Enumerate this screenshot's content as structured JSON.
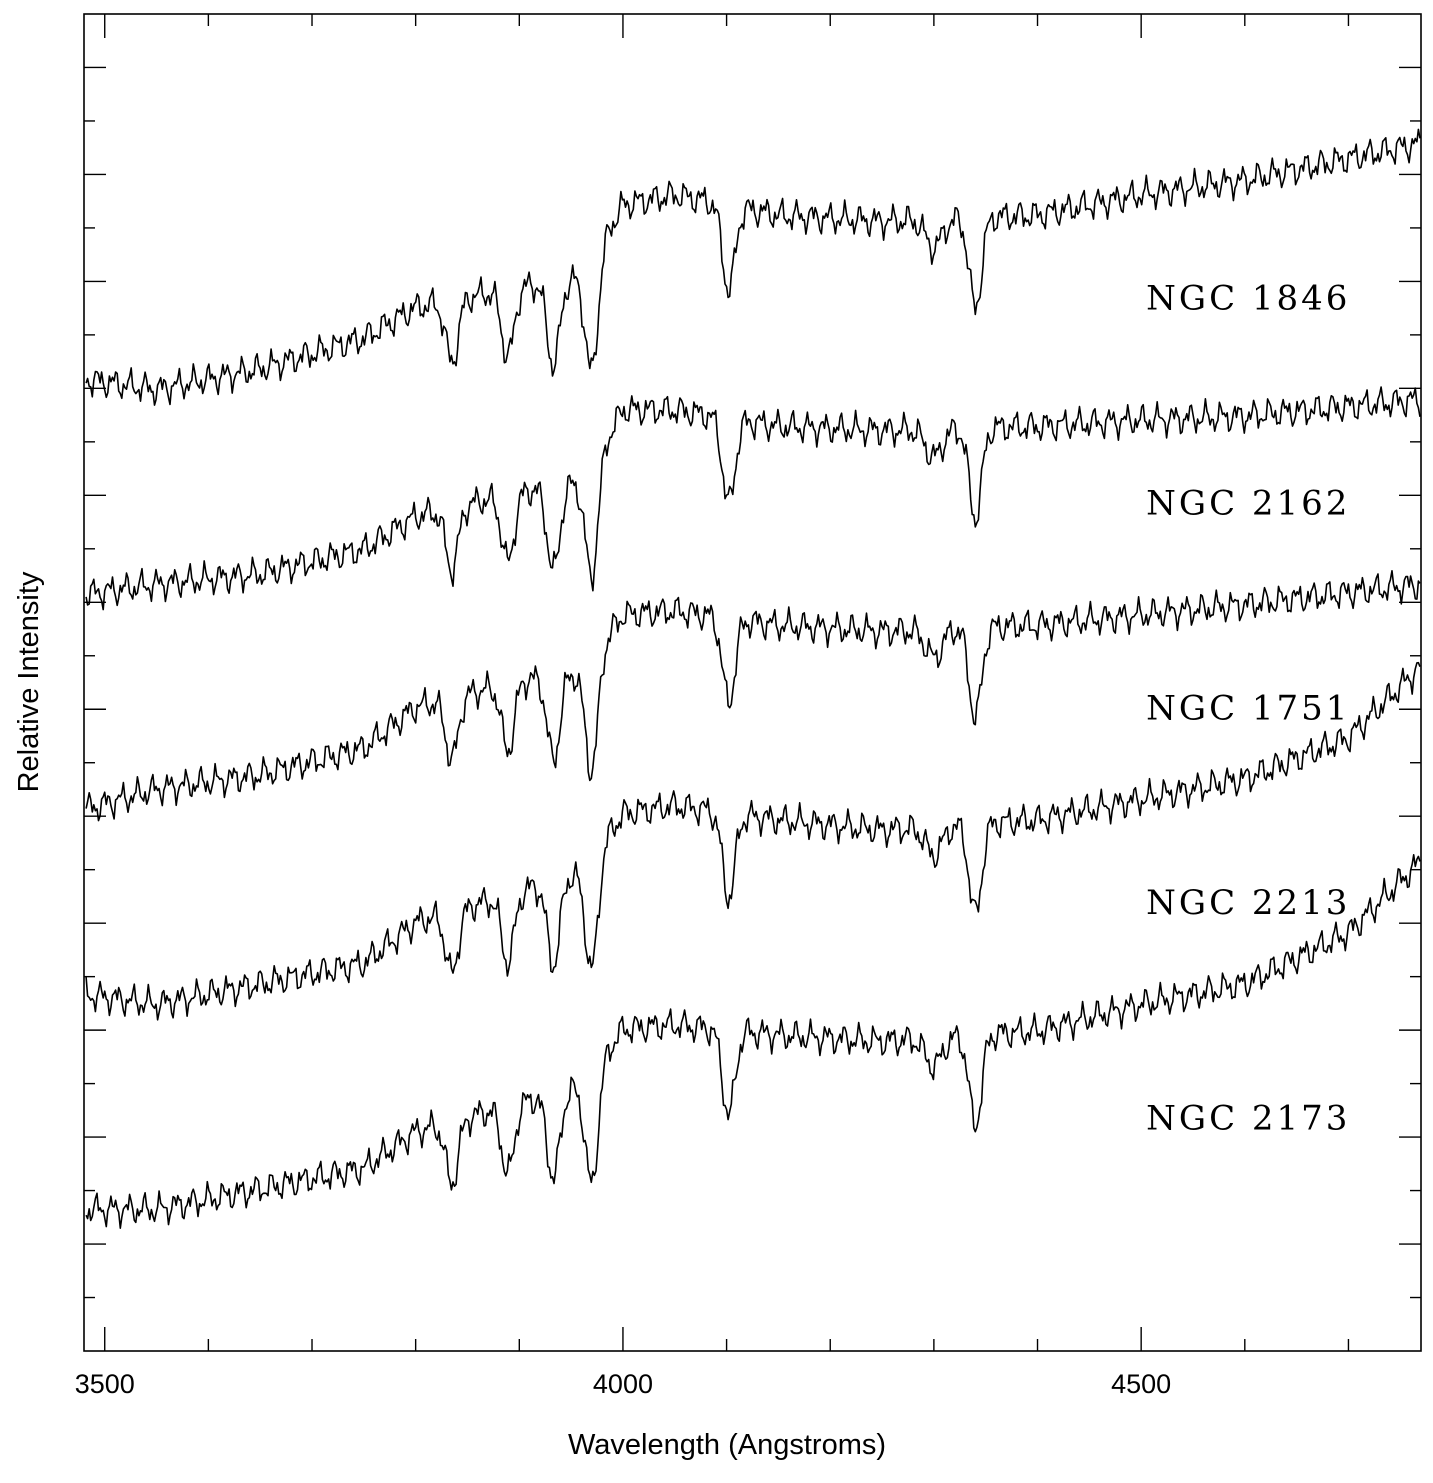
{
  "chart_data": {
    "type": "line",
    "title": "",
    "xlabel": "Wavelength (Angstroms)",
    "ylabel": "Relative Intensity",
    "xlim": [
      3480,
      4770
    ],
    "x_major_ticks": [
      3500,
      4000,
      4500
    ],
    "x_minor_step": 100,
    "y_tick_count": 24,
    "grid": false,
    "legend": "none",
    "absorption_features": [
      {
        "wavelength": 3835,
        "depth": 0.55,
        "width": 6
      },
      {
        "wavelength": 3889,
        "depth": 0.6,
        "width": 6
      },
      {
        "wavelength": 3933,
        "depth": 0.75,
        "width": 6
      },
      {
        "wavelength": 3970,
        "depth": 1.0,
        "width": 6
      },
      {
        "wavelength": 4102,
        "depth": 0.75,
        "width": 6
      },
      {
        "wavelength": 4300,
        "depth": 0.25,
        "width": 8
      },
      {
        "wavelength": 4340,
        "depth": 0.8,
        "width": 6
      }
    ],
    "series": [
      {
        "name": "NGC 1846",
        "label_x": 4500,
        "offset": 4.0,
        "knots": [
          [
            3480,
            0.15
          ],
          [
            3550,
            0.1
          ],
          [
            3650,
            0.2
          ],
          [
            3750,
            0.35
          ],
          [
            3800,
            0.5
          ],
          [
            3900,
            0.6
          ],
          [
            3960,
            0.65
          ],
          [
            4000,
            1.0
          ],
          [
            4050,
            1.05
          ],
          [
            4150,
            0.95
          ],
          [
            4250,
            0.92
          ],
          [
            4400,
            0.95
          ],
          [
            4500,
            1.05
          ],
          [
            4600,
            1.12
          ],
          [
            4770,
            1.3
          ]
        ]
      },
      {
        "name": "NGC 2162",
        "label_x": 4500,
        "offset": 3.0,
        "knots": [
          [
            3480,
            0.1
          ],
          [
            3550,
            0.15
          ],
          [
            3650,
            0.2
          ],
          [
            3750,
            0.32
          ],
          [
            3800,
            0.48
          ],
          [
            3900,
            0.6
          ],
          [
            3960,
            0.65
          ],
          [
            4000,
            1.0
          ],
          [
            4050,
            1.0
          ],
          [
            4150,
            0.92
          ],
          [
            4250,
            0.9
          ],
          [
            4400,
            0.92
          ],
          [
            4500,
            0.95
          ],
          [
            4600,
            0.97
          ],
          [
            4770,
            1.05
          ]
        ]
      },
      {
        "name": "NGC 1751",
        "label_x": 4500,
        "offset": 2.0,
        "knots": [
          [
            3480,
            0.05
          ],
          [
            3550,
            0.15
          ],
          [
            3650,
            0.22
          ],
          [
            3750,
            0.35
          ],
          [
            3800,
            0.55
          ],
          [
            3900,
            0.68
          ],
          [
            3960,
            0.72
          ],
          [
            4000,
            1.0
          ],
          [
            4050,
            1.02
          ],
          [
            4150,
            0.95
          ],
          [
            4250,
            0.92
          ],
          [
            4400,
            0.95
          ],
          [
            4500,
            1.0
          ],
          [
            4600,
            1.05
          ],
          [
            4770,
            1.15
          ]
        ]
      },
      {
        "name": "NGC 2213",
        "label_x": 4500,
        "offset": 1.05,
        "knots": [
          [
            3480,
            0.1
          ],
          [
            3550,
            0.05
          ],
          [
            3650,
            0.15
          ],
          [
            3750,
            0.25
          ],
          [
            3800,
            0.45
          ],
          [
            3900,
            0.6
          ],
          [
            3960,
            0.7
          ],
          [
            4000,
            0.98
          ],
          [
            4050,
            1.02
          ],
          [
            4150,
            0.95
          ],
          [
            4250,
            0.9
          ],
          [
            4400,
            0.95
          ],
          [
            4500,
            1.05
          ],
          [
            4600,
            1.15
          ],
          [
            4700,
            1.35
          ],
          [
            4770,
            1.7
          ]
        ]
      },
      {
        "name": "NGC 2173",
        "label_x": 4500,
        "offset": 0.0,
        "knots": [
          [
            3480,
            0.1
          ],
          [
            3550,
            0.1
          ],
          [
            3650,
            0.2
          ],
          [
            3750,
            0.3
          ],
          [
            3800,
            0.48
          ],
          [
            3900,
            0.62
          ],
          [
            3960,
            0.7
          ],
          [
            4000,
            0.98
          ],
          [
            4050,
            1.0
          ],
          [
            4150,
            0.95
          ],
          [
            4250,
            0.92
          ],
          [
            4400,
            0.97
          ],
          [
            4500,
            1.1
          ],
          [
            4600,
            1.2
          ],
          [
            4700,
            1.45
          ],
          [
            4770,
            1.8
          ]
        ]
      }
    ]
  }
}
